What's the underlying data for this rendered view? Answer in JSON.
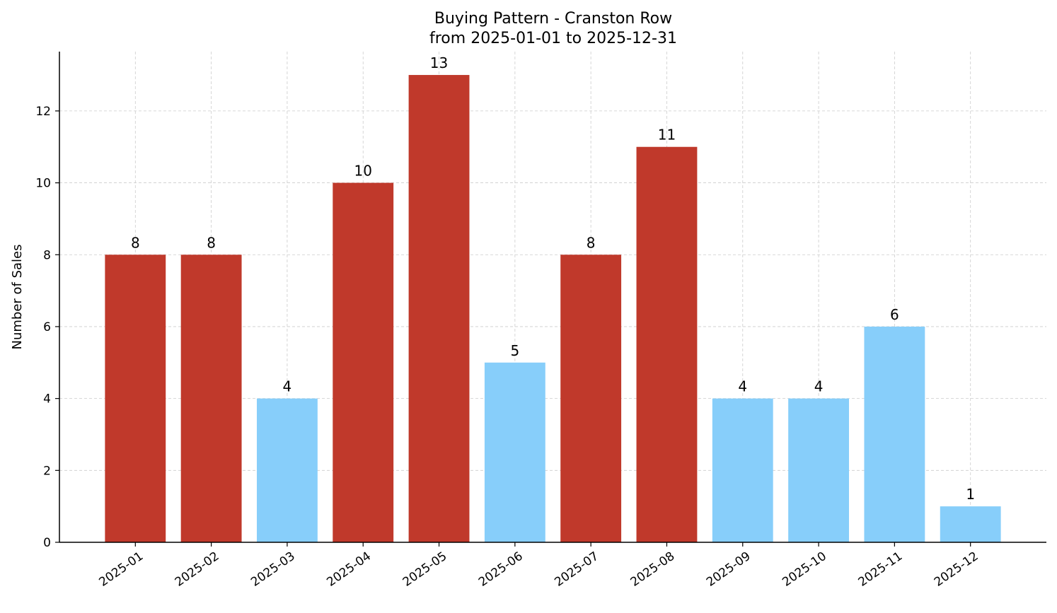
{
  "chart_data": {
    "type": "bar",
    "title": "Buying Pattern - Cranston Row",
    "subtitle": "from 2025-01-01 to 2025-12-31",
    "xlabel": "",
    "ylabel": "Number of Sales",
    "categories": [
      "2025-01",
      "2025-02",
      "2025-03",
      "2025-04",
      "2025-05",
      "2025-06",
      "2025-07",
      "2025-08",
      "2025-09",
      "2025-10",
      "2025-11",
      "2025-12"
    ],
    "values": [
      8,
      8,
      4,
      10,
      13,
      5,
      8,
      11,
      4,
      4,
      6,
      1
    ],
    "bar_colors": [
      "#C0392B",
      "#C0392B",
      "#87CEFA",
      "#C0392B",
      "#C0392B",
      "#87CEFA",
      "#C0392B",
      "#C0392B",
      "#87CEFA",
      "#87CEFA",
      "#87CEFA",
      "#87CEFA"
    ],
    "ylim": [
      0,
      13.65
    ],
    "yticks": [
      0,
      2,
      4,
      6,
      8,
      10,
      12
    ],
    "grid": true,
    "data_labels": true
  }
}
